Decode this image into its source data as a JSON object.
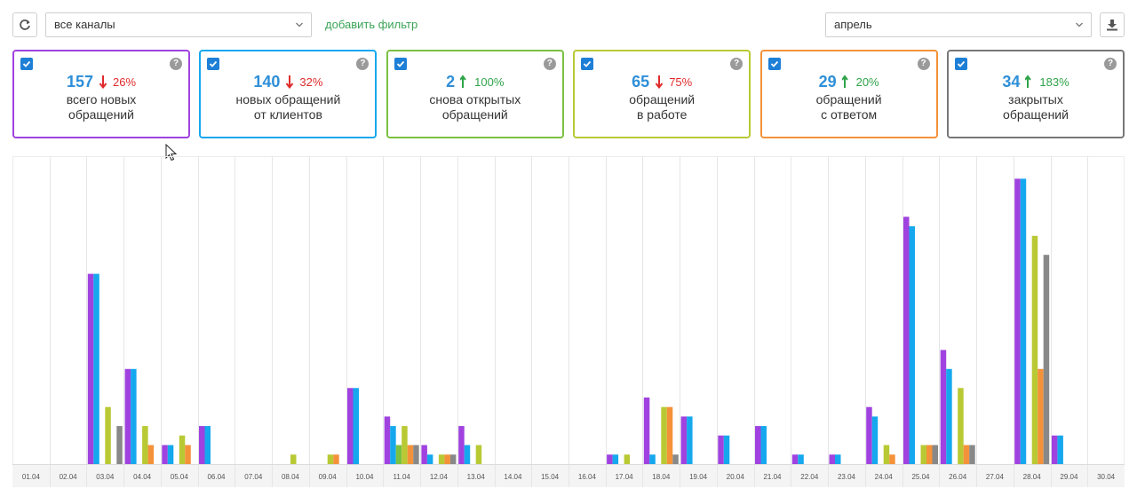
{
  "toolbar": {
    "channel_select": "все каналы",
    "add_filter": "добавить фильтр",
    "month_select": "апрель"
  },
  "cards": [
    {
      "value": "157",
      "trend": "down",
      "pct": "26%",
      "line1": "всего новых",
      "line2": "обращений",
      "color": "#a042e0",
      "checked": true
    },
    {
      "value": "140",
      "trend": "down",
      "pct": "32%",
      "line1": "новых обращений",
      "line2": "от клиентов",
      "color": "#15a8ee",
      "checked": true
    },
    {
      "value": "2",
      "trend": "up",
      "pct": "100%",
      "line1": "снова открытых",
      "line2": "обращений",
      "color": "#7ac141",
      "checked": true
    },
    {
      "value": "65",
      "trend": "down",
      "pct": "75%",
      "line1": "обращений",
      "line2": "в работе",
      "color": "#b9c934",
      "checked": true
    },
    {
      "value": "29",
      "trend": "up",
      "pct": "20%",
      "line1": "обращений",
      "line2": "с ответом",
      "color": "#f4923a",
      "checked": true
    },
    {
      "value": "34",
      "trend": "up",
      "pct": "183%",
      "line1": "закрытых",
      "line2": "обращений",
      "color": "#777777",
      "checked": true
    }
  ],
  "chart_data": {
    "type": "bar",
    "categories": [
      "01.04",
      "02.04",
      "03.04",
      "04.04",
      "05.04",
      "06.04",
      "07.04",
      "08.04",
      "09.04",
      "10.04",
      "11.04",
      "12.04",
      "13.04",
      "14.04",
      "15.04",
      "16.04",
      "17.04",
      "18.04",
      "19.04",
      "20.04",
      "21.04",
      "22.04",
      "23.04",
      "24.04",
      "25.04",
      "26.04",
      "27.04",
      "28.04",
      "29.04",
      "30.04"
    ],
    "ylim": [
      0,
      16
    ],
    "grid": true,
    "series": [
      {
        "color": "#a042e0",
        "values": [
          0,
          0,
          10,
          5,
          1,
          2,
          0,
          0,
          0,
          4,
          2.5,
          1,
          2,
          0,
          0,
          0,
          0.5,
          3.5,
          2.5,
          1.5,
          2,
          0.5,
          0.5,
          3,
          13,
          6,
          0,
          15,
          1.5,
          0
        ]
      },
      {
        "color": "#15a8ee",
        "values": [
          0,
          0,
          10,
          5,
          1,
          2,
          0,
          0,
          0,
          4,
          2,
          0.5,
          1,
          0,
          0,
          0,
          0.5,
          0.5,
          2.5,
          1.5,
          2,
          0.5,
          0.5,
          2.5,
          12.5,
          5,
          0,
          15,
          1.5,
          0
        ]
      },
      {
        "color": "#7ac141",
        "values": [
          0,
          0,
          0,
          0,
          0,
          0,
          0,
          0,
          0,
          0,
          1,
          0,
          0,
          0,
          0,
          0,
          0,
          0,
          0,
          0,
          0,
          0,
          0,
          0,
          0,
          0,
          0,
          0,
          0,
          0
        ]
      },
      {
        "color": "#b9c934",
        "values": [
          0,
          0,
          3,
          2,
          1.5,
          0,
          0,
          0.5,
          0.5,
          0,
          2,
          0.5,
          1,
          0,
          0,
          0,
          0.5,
          3,
          0,
          0,
          0,
          0,
          0,
          1,
          1,
          4,
          0,
          12,
          0,
          0
        ]
      },
      {
        "color": "#f4923a",
        "values": [
          0,
          0,
          0,
          1,
          1,
          0,
          0,
          0,
          0.5,
          0,
          1,
          0.5,
          0,
          0,
          0,
          0,
          0,
          3,
          0,
          0,
          0,
          0,
          0,
          0.5,
          1,
          1,
          0,
          5,
          0,
          0
        ]
      },
      {
        "color": "#888888",
        "values": [
          0,
          0,
          2,
          0,
          0,
          0,
          0,
          0,
          0,
          0,
          1,
          0.5,
          0,
          0,
          0,
          0,
          0,
          0.5,
          0,
          0,
          0,
          0,
          0,
          0,
          1,
          1,
          0,
          11,
          0,
          0
        ]
      }
    ]
  }
}
